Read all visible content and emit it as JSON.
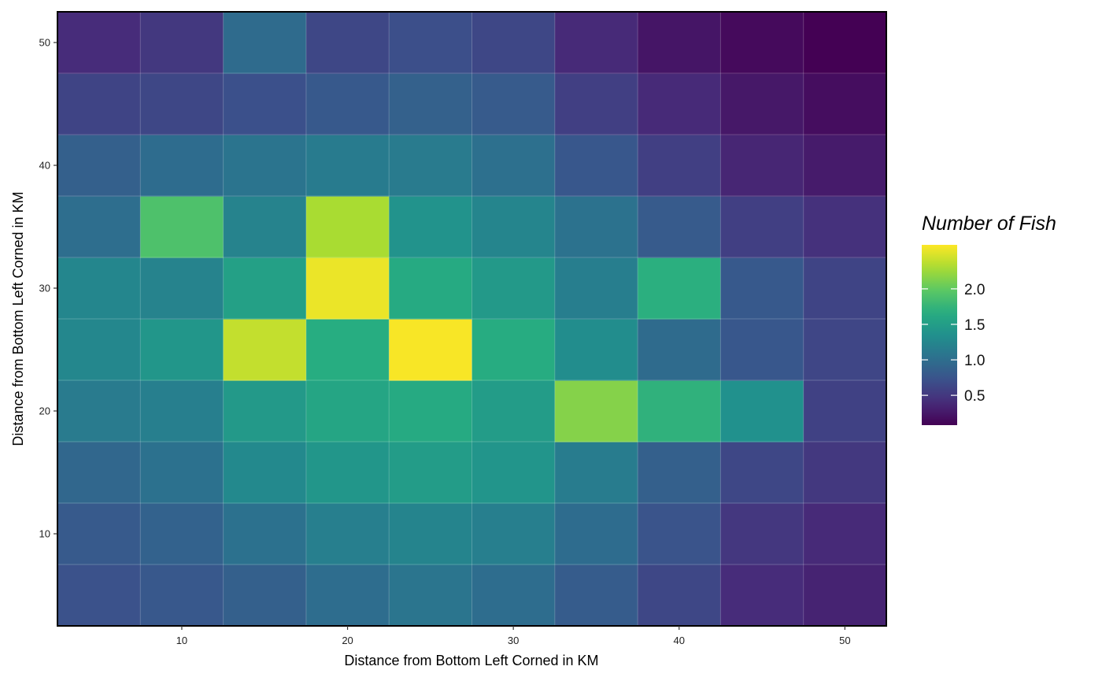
{
  "chart_data": {
    "type": "heatmap",
    "xlabel": "Distance from Bottom Left Corned in KM",
    "ylabel": "Distance from Bottom Left Corned in KM",
    "x": [
      5,
      10,
      15,
      20,
      25,
      30,
      35,
      40,
      45,
      50
    ],
    "y": [
      5,
      10,
      15,
      20,
      25,
      30,
      35,
      40,
      45,
      50
    ],
    "tile_width": 5,
    "xlim": [
      2.5,
      52.5
    ],
    "ylim": [
      2.5,
      52.5
    ],
    "x_ticks": [
      "10",
      "20",
      "30",
      "40",
      "50"
    ],
    "y_ticks": [
      "10",
      "20",
      "30",
      "40",
      "50"
    ],
    "grid": true,
    "values": [
      [
        0.72,
        0.78,
        0.86,
        0.99,
        1.07,
        0.99,
        0.82,
        0.63,
        0.4,
        0.33
      ],
      [
        0.8,
        0.88,
        1.03,
        1.18,
        1.23,
        1.18,
        0.98,
        0.74,
        0.49,
        0.38
      ],
      [
        0.93,
        1.03,
        1.28,
        1.42,
        1.48,
        1.4,
        1.15,
        0.86,
        0.63,
        0.5
      ],
      [
        1.13,
        1.18,
        1.45,
        1.58,
        1.64,
        1.48,
        2.15,
        1.72,
        1.36,
        0.58
      ],
      [
        1.26,
        1.42,
        2.4,
        1.67,
        2.6,
        1.66,
        1.32,
        0.97,
        0.77,
        0.62
      ],
      [
        1.25,
        1.22,
        1.53,
        2.55,
        1.64,
        1.45,
        1.17,
        1.69,
        0.79,
        0.6
      ],
      [
        1.0,
        1.9,
        1.22,
        2.3,
        1.38,
        1.24,
        1.04,
        0.81,
        0.56,
        0.44
      ],
      [
        0.86,
        0.98,
        1.06,
        1.14,
        1.13,
        1.02,
        0.77,
        0.56,
        0.35,
        0.27
      ],
      [
        0.6,
        0.63,
        0.71,
        0.79,
        0.87,
        0.81,
        0.56,
        0.38,
        0.25,
        0.17
      ],
      [
        0.4,
        0.5,
        0.97,
        0.63,
        0.7,
        0.63,
        0.38,
        0.23,
        0.15,
        0.08
      ]
    ],
    "legend": {
      "title": "Number of Fish",
      "placement": "right",
      "range": [
        0.08,
        2.62
      ],
      "breaks": [
        0.5,
        1.0,
        1.5,
        2.0
      ],
      "break_labels": [
        "0.5",
        "1.0",
        "1.5",
        "2.0"
      ],
      "palette": "viridis"
    }
  }
}
